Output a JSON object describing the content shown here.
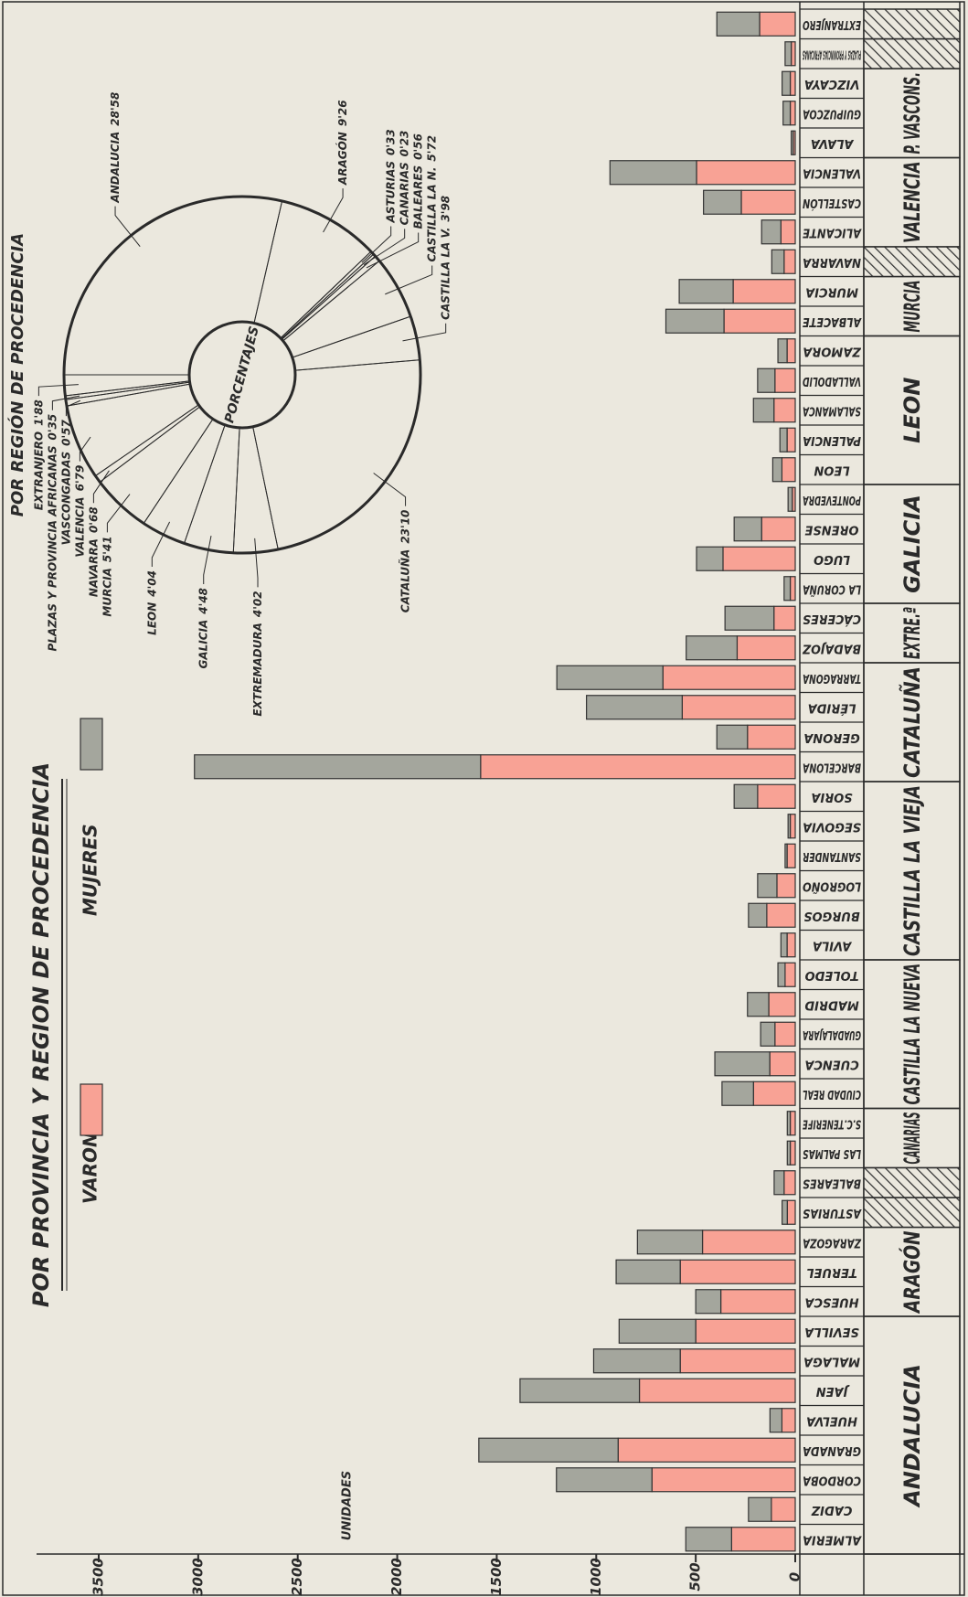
{
  "chart_data": [
    {
      "type": "bar",
      "stacked": true,
      "title": "POR PROVINCIA Y REGION DE PROCEDENCIA",
      "ylabel": "UNIDADES",
      "categories": [
        "ALMERIA",
        "CADIZ",
        "CORDOBA",
        "GRANADA",
        "HUELVA",
        "JAEN",
        "MALAGA",
        "SEVILLA",
        "HUESCA",
        "TERUEL",
        "ZARAGOZA",
        "ASTURIAS",
        "BALEARES",
        "LAS PALMAS",
        "S.C.TENERIFE",
        "CIUDAD REAL",
        "CUENCA",
        "GUADALAJARA",
        "MADRID",
        "TOLEDO",
        "AVILA",
        "BURGOS",
        "LOGROÑO",
        "SANTANDER",
        "SEGOVIA",
        "SORIA",
        "BARCELONA",
        "GERONA",
        "LÉRIDA",
        "TARRAGONA",
        "BADAJOZ",
        "CÁCERES",
        "LA CORUÑA",
        "LUGO",
        "ORENSE",
        "PONTEVEDRA",
        "LEON",
        "PALENCIA",
        "SALAMANCA",
        "VALLADOLID",
        "ZAMORA",
        "ALBACETE",
        "MURCIA",
        "NAVARRA",
        "ALICANTE",
        "CASTELLÓN",
        "VALENCIA",
        "ALAVA",
        "GUIPUZCOA",
        "VIZCAYA",
        "PLAZAS Y PROVINCIAS AFRICANAS",
        "EXTRANJERO"
      ],
      "series": [
        {
          "name": "VARONES",
          "color": "#f8a295",
          "values": [
            320,
            120,
            720,
            890,
            67,
            783,
            578,
            500,
            374,
            578,
            466,
            40,
            56,
            25,
            25,
            210,
            128,
            102,
            133,
            51,
            41,
            143,
            92,
            41,
            25,
            189,
            1581,
            240,
            568,
            665,
            292,
            107,
            25,
            363,
            169,
            15,
            67,
            41,
            107,
            102,
            41,
            358,
            312,
            56,
            72,
            271,
            496,
            10,
            25,
            25,
            20,
            179
          ]
        },
        {
          "name": "MUJERES",
          "color": "#a4a69d",
          "values": [
            230,
            115,
            480,
            700,
            60,
            600,
            435,
            385,
            126,
            322,
            327,
            26,
            50,
            15,
            15,
            158,
            276,
            72,
            107,
            36,
            31,
            92,
            97,
            10,
            11,
            118,
            1438,
            154,
            481,
            533,
            256,
            246,
            31,
            133,
            138,
            21,
            46,
            36,
            103,
            87,
            46,
            292,
            271,
            62,
            97,
            190,
            435,
            10,
            36,
            41,
            31,
            215
          ]
        }
      ],
      "regions": [
        {
          "name": "ANDALUCIA",
          "provinces": [
            "ALMERIA",
            "CADIZ",
            "CORDOBA",
            "GRANADA",
            "HUELVA",
            "JAEN",
            "MALAGA",
            "SEVILLA"
          ]
        },
        {
          "name": "ARAGÓN",
          "provinces": [
            "HUESCA",
            "TERUEL",
            "ZARAGOZA"
          ]
        },
        {
          "name": "CANARIAS",
          "provinces": [
            "LAS PALMAS",
            "S.C.TENERIFE"
          ]
        },
        {
          "name": "CASTILLA LA NUEVA",
          "provinces": [
            "CIUDAD REAL",
            "CUENCA",
            "GUADALAJARA",
            "MADRID",
            "TOLEDO"
          ]
        },
        {
          "name": "CASTILLA LA VIEJA",
          "provinces": [
            "AVILA",
            "BURGOS",
            "LOGROÑO",
            "SANTANDER",
            "SEGOVIA",
            "SORIA"
          ]
        },
        {
          "name": "CATALUÑA",
          "provinces": [
            "BARCELONA",
            "GERONA",
            "LÉRIDA",
            "TARRAGONA"
          ]
        },
        {
          "name": "EXTRE.ª",
          "provinces": [
            "BADAJOZ",
            "CÁCERES"
          ]
        },
        {
          "name": "GALICIA",
          "provinces": [
            "LA CORUÑA",
            "LUGO",
            "ORENSE",
            "PONTEVEDRA"
          ]
        },
        {
          "name": "LEON",
          "provinces": [
            "LEON",
            "PALENCIA",
            "SALAMANCA",
            "VALLADOLID",
            "ZAMORA"
          ]
        },
        {
          "name": "MURCIA",
          "provinces": [
            "ALBACETE",
            "MURCIA"
          ]
        },
        {
          "name": "VALENCIA",
          "provinces": [
            "ALICANTE",
            "CASTELLÓN",
            "VALENCIA"
          ]
        },
        {
          "name": "P. VASCONS.",
          "provinces": [
            "ALAVA",
            "GUIPUZCOA",
            "VIZCAYA"
          ]
        }
      ],
      "ylim": [
        0,
        3500
      ],
      "yticks": [
        0,
        500,
        1000,
        1500,
        2000,
        2500,
        3000,
        3500
      ],
      "grid": false
    },
    {
      "type": "pie",
      "title": "POR REGIÓN DE PROCEDENCIA",
      "center_label": "PORCENTAJES",
      "categories": [
        "ANDALUCIA",
        "ARAGÓN",
        "ASTURIAS",
        "CANARIAS",
        "BALEARES",
        "CASTILLA LA N.",
        "CASTILLA LA V.",
        "CATALUÑA",
        "EXTREMADURA",
        "GALICIA",
        "LEON",
        "MURCIA",
        "NAVARRA",
        "VALENCIA",
        "VASCONGADAS",
        "PLAZAS Y PROVINCIA AFRICANAS",
        "EXTRANJERO"
      ],
      "values": [
        28.58,
        9.26,
        0.33,
        0.23,
        0.56,
        5.72,
        3.98,
        23.1,
        4.02,
        4.48,
        4.04,
        5.41,
        0.68,
        6.79,
        0.57,
        0.35,
        1.88
      ],
      "value_labels": [
        "28'58",
        "9'26",
        "0'33",
        "0'23",
        "0'56",
        "5'72",
        "3'98",
        "23'10",
        "4'02",
        "4'48",
        "4'04",
        "5'41",
        "0'68",
        "6'79",
        "0'57",
        "0'35",
        "1'88"
      ]
    }
  ]
}
